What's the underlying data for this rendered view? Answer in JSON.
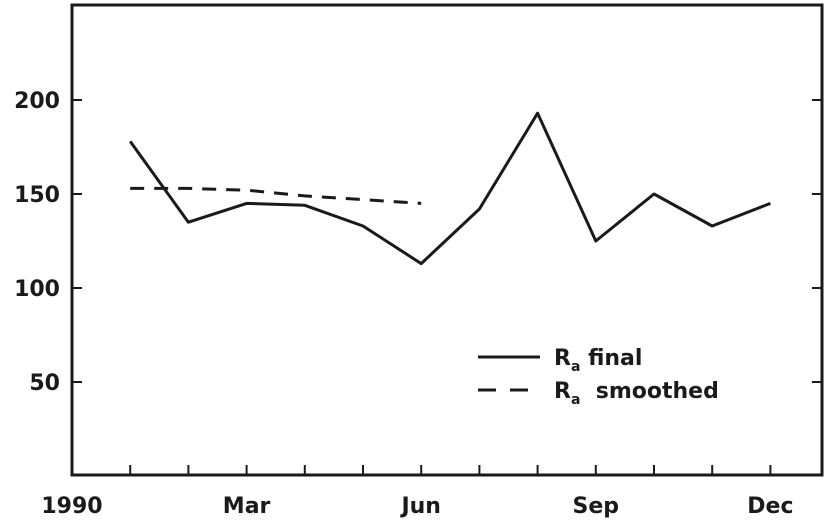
{
  "chart_data": {
    "type": "line",
    "title": "",
    "xlabel": "",
    "ylabel": "",
    "x_tick_labels": [
      "1990",
      "Mar",
      "Jun",
      "Sep",
      "Dec"
    ],
    "y_ticks": [
      50,
      100,
      150,
      200
    ],
    "ylim": [
      0,
      250
    ],
    "x_month_range": [
      0,
      12
    ],
    "grid": false,
    "legend_position": "center-right",
    "series": [
      {
        "name": "final",
        "label_main": "R",
        "label_sub": "a",
        "label_rest": " final",
        "style": "solid",
        "color": "#1a1a1a",
        "x": [
          1,
          2,
          3,
          4,
          5,
          6,
          7,
          8,
          9,
          10,
          11,
          12
        ],
        "y": [
          178,
          135,
          145,
          144,
          133,
          113,
          142,
          193,
          125,
          150,
          133,
          145
        ]
      },
      {
        "name": "smoothed",
        "label_main": "R",
        "label_sub": "a",
        "label_rest": "  smoothed",
        "style": "dashed",
        "color": "#1a1a1a",
        "x": [
          1,
          2,
          3,
          4,
          5,
          6
        ],
        "y": [
          153,
          153,
          152,
          149,
          147,
          145
        ]
      }
    ]
  }
}
